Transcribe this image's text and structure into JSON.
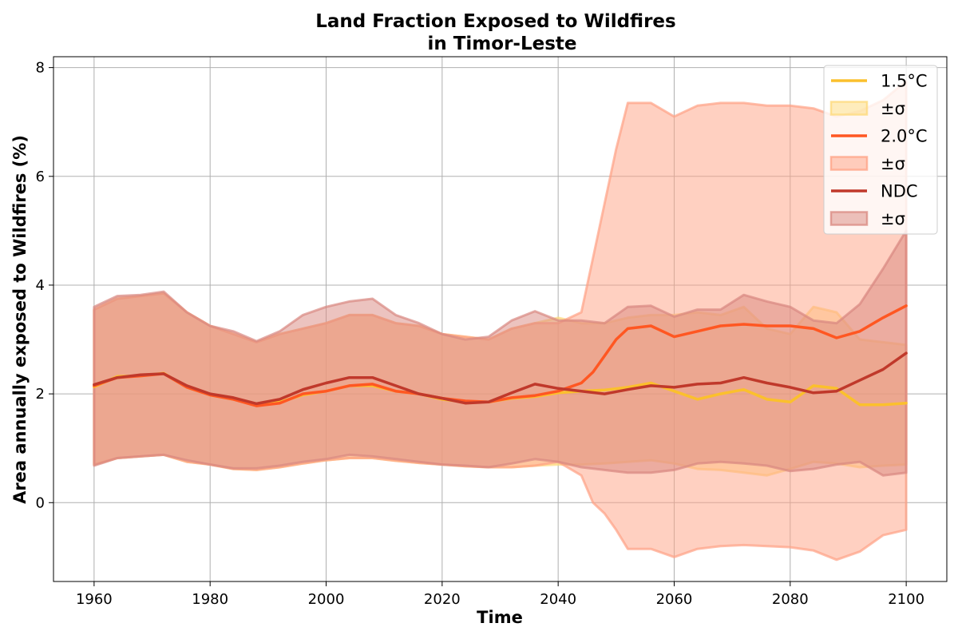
{
  "chart_data": {
    "type": "line",
    "title": "Land Fraction Exposed to Wildfires",
    "subtitle": "in Timor-Leste",
    "xlabel": "Time",
    "ylabel": "Area annually exposed to Wildfires (%)",
    "xlim": [
      1953,
      2107
    ],
    "ylim": [
      -1.45,
      8.2
    ],
    "xticks": [
      "1960",
      "1980",
      "2000",
      "2020",
      "2040",
      "2060",
      "2080",
      "2100"
    ],
    "yticks": [
      "0",
      "2",
      "4",
      "6",
      "8"
    ],
    "grid": true,
    "legend_position": "top-right",
    "legend": [
      {
        "label": "1.5°C",
        "kind": "line",
        "series": "s15"
      },
      {
        "label": "±σ",
        "kind": "band",
        "series": "s15"
      },
      {
        "label": "2.0°C",
        "kind": "line",
        "series": "s20"
      },
      {
        "label": "±σ",
        "kind": "band",
        "series": "s20"
      },
      {
        "label": "NDC",
        "kind": "line",
        "series": "ndc"
      },
      {
        "label": "±σ",
        "kind": "band",
        "series": "ndc"
      }
    ],
    "series": [
      {
        "id": "s15",
        "name": "1.5°C",
        "color": "#FBC02D",
        "band_color": "#FDD97A",
        "x": [
          1960,
          1964,
          1968,
          1972,
          1976,
          1980,
          1984,
          1988,
          1992,
          1996,
          2000,
          2004,
          2008,
          2012,
          2016,
          2020,
          2024,
          2028,
          2032,
          2036,
          2040,
          2044,
          2048,
          2052,
          2056,
          2060,
          2064,
          2068,
          2072,
          2076,
          2080,
          2084,
          2088,
          2092,
          2096,
          2100
        ],
        "mean": [
          2.13,
          2.32,
          2.33,
          2.38,
          2.12,
          1.98,
          1.9,
          1.8,
          1.85,
          1.98,
          2.05,
          2.15,
          2.15,
          2.05,
          2.0,
          1.9,
          1.85,
          1.85,
          1.92,
          1.95,
          2.02,
          2.05,
          2.07,
          2.12,
          2.2,
          2.05,
          1.9,
          2.0,
          2.08,
          1.9,
          1.85,
          2.15,
          2.1,
          1.8,
          1.8,
          1.83
        ],
        "upper": [
          3.55,
          3.75,
          3.8,
          3.85,
          3.5,
          3.25,
          3.1,
          2.95,
          3.1,
          3.2,
          3.3,
          3.45,
          3.45,
          3.3,
          3.25,
          3.1,
          3.05,
          3.0,
          3.2,
          3.3,
          3.4,
          3.3,
          3.3,
          3.4,
          3.45,
          3.45,
          3.5,
          3.45,
          3.6,
          3.2,
          3.1,
          3.6,
          3.5,
          3.0,
          2.95,
          2.9
        ],
        "lower": [
          0.7,
          0.82,
          0.85,
          0.88,
          0.75,
          0.7,
          0.62,
          0.6,
          0.65,
          0.72,
          0.78,
          0.82,
          0.82,
          0.77,
          0.73,
          0.7,
          0.67,
          0.65,
          0.65,
          0.68,
          0.7,
          0.7,
          0.72,
          0.75,
          0.78,
          0.72,
          0.62,
          0.6,
          0.55,
          0.5,
          0.62,
          0.75,
          0.72,
          0.65,
          0.68,
          0.7
        ]
      },
      {
        "id": "s20",
        "name": "2.0°C",
        "color": "#FF5722",
        "band_color": "#FFA184",
        "x": [
          1960,
          1964,
          1968,
          1972,
          1976,
          1980,
          1984,
          1988,
          1992,
          1996,
          2000,
          2004,
          2008,
          2012,
          2016,
          2020,
          2024,
          2028,
          2032,
          2036,
          2040,
          2044,
          2046,
          2048,
          2050,
          2052,
          2056,
          2060,
          2064,
          2068,
          2072,
          2076,
          2080,
          2084,
          2088,
          2092,
          2096,
          2100
        ],
        "mean": [
          2.15,
          2.3,
          2.33,
          2.37,
          2.12,
          1.98,
          1.9,
          1.78,
          1.83,
          2.0,
          2.05,
          2.15,
          2.18,
          2.05,
          2.0,
          1.92,
          1.87,
          1.85,
          1.93,
          1.97,
          2.05,
          2.2,
          2.4,
          2.7,
          3.0,
          3.2,
          3.25,
          3.05,
          3.15,
          3.25,
          3.28,
          3.25,
          3.25,
          3.2,
          3.03,
          3.15,
          3.4,
          3.62
        ],
        "upper": [
          3.55,
          3.75,
          3.8,
          3.85,
          3.5,
          3.25,
          3.1,
          2.95,
          3.1,
          3.2,
          3.3,
          3.45,
          3.45,
          3.3,
          3.25,
          3.1,
          3.05,
          3.0,
          3.2,
          3.3,
          3.3,
          3.5,
          4.5,
          5.5,
          6.5,
          7.35,
          7.35,
          7.1,
          7.3,
          7.35,
          7.35,
          7.3,
          7.3,
          7.25,
          7.1,
          7.2,
          7.4,
          7.75
        ],
        "lower": [
          0.7,
          0.82,
          0.85,
          0.88,
          0.75,
          0.7,
          0.62,
          0.6,
          0.65,
          0.72,
          0.78,
          0.82,
          0.82,
          0.77,
          0.73,
          0.7,
          0.67,
          0.65,
          0.65,
          0.68,
          0.75,
          0.5,
          0.0,
          -0.2,
          -0.5,
          -0.85,
          -0.85,
          -1.0,
          -0.85,
          -0.8,
          -0.78,
          -0.8,
          -0.82,
          -0.88,
          -1.05,
          -0.9,
          -0.6,
          -0.5
        ]
      },
      {
        "id": "ndc",
        "name": "NDC",
        "color": "#C0392B",
        "band_color": "#D98880",
        "x": [
          1960,
          1964,
          1968,
          1972,
          1976,
          1980,
          1984,
          1988,
          1992,
          1996,
          2000,
          2004,
          2008,
          2012,
          2016,
          2020,
          2024,
          2028,
          2032,
          2036,
          2040,
          2044,
          2048,
          2052,
          2056,
          2060,
          2064,
          2068,
          2072,
          2076,
          2080,
          2084,
          2088,
          2092,
          2096,
          2100
        ],
        "mean": [
          2.17,
          2.3,
          2.35,
          2.37,
          2.15,
          2.0,
          1.93,
          1.82,
          1.9,
          2.08,
          2.2,
          2.3,
          2.3,
          2.15,
          2.0,
          1.92,
          1.83,
          1.85,
          2.02,
          2.18,
          2.1,
          2.05,
          2.0,
          2.08,
          2.15,
          2.12,
          2.18,
          2.2,
          2.3,
          2.2,
          2.12,
          2.02,
          2.05,
          2.25,
          2.45,
          2.75
        ],
        "upper": [
          3.6,
          3.8,
          3.82,
          3.88,
          3.5,
          3.25,
          3.15,
          2.97,
          3.15,
          3.45,
          3.6,
          3.7,
          3.75,
          3.45,
          3.3,
          3.1,
          3.0,
          3.05,
          3.35,
          3.52,
          3.35,
          3.35,
          3.3,
          3.6,
          3.62,
          3.42,
          3.55,
          3.55,
          3.82,
          3.7,
          3.6,
          3.35,
          3.3,
          3.65,
          4.3,
          5.0
        ],
        "lower": [
          0.68,
          0.82,
          0.85,
          0.88,
          0.78,
          0.7,
          0.63,
          0.63,
          0.68,
          0.75,
          0.8,
          0.88,
          0.85,
          0.8,
          0.75,
          0.7,
          0.68,
          0.65,
          0.72,
          0.8,
          0.75,
          0.65,
          0.6,
          0.55,
          0.55,
          0.6,
          0.72,
          0.75,
          0.72,
          0.68,
          0.58,
          0.62,
          0.7,
          0.75,
          0.5,
          0.55
        ]
      }
    ]
  }
}
